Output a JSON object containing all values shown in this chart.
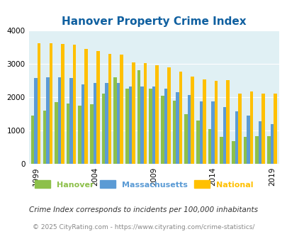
{
  "title": "Hanover Property Crime Index",
  "title_color": "#1060a0",
  "background_color": "#e0f0f4",
  "fig_background": "#ffffff",
  "years": [
    1999,
    2000,
    2001,
    2002,
    2003,
    2004,
    2005,
    2006,
    2007,
    2008,
    2009,
    2010,
    2011,
    2012,
    2013,
    2014,
    2015,
    2016,
    2017,
    2018,
    2019
  ],
  "hanover": [
    1450,
    1600,
    1850,
    1800,
    1750,
    1780,
    2100,
    2600,
    2250,
    2800,
    2250,
    2050,
    1900,
    1480,
    1300,
    1050,
    800,
    670,
    810,
    820,
    820
  ],
  "massachusetts": [
    2580,
    2600,
    2600,
    2580,
    2380,
    2420,
    2420,
    2420,
    2320,
    2320,
    2320,
    2250,
    2150,
    2070,
    1880,
    1870,
    1700,
    1580,
    1450,
    1280,
    1200
  ],
  "national": [
    3620,
    3620,
    3600,
    3580,
    3450,
    3380,
    3300,
    3280,
    3050,
    3020,
    2950,
    2900,
    2770,
    2620,
    2520,
    2490,
    2510,
    2110,
    2160,
    2110,
    2100
  ],
  "ylim": [
    0,
    4000
  ],
  "yticks": [
    0,
    1000,
    2000,
    3000,
    4000
  ],
  "xlabel_ticks": [
    1999,
    2004,
    2009,
    2014,
    2019
  ],
  "hanover_color": "#8dc04a",
  "massachusetts_color": "#5b9bd5",
  "national_color": "#ffc000",
  "bar_width": 0.27,
  "footnote1": "Crime Index corresponds to incidents per 100,000 inhabitants",
  "footnote2": "© 2025 CityRating.com - https://www.cityrating.com/crime-statistics/",
  "legend_labels": [
    "Hanover",
    "Massachusetts",
    "National"
  ]
}
